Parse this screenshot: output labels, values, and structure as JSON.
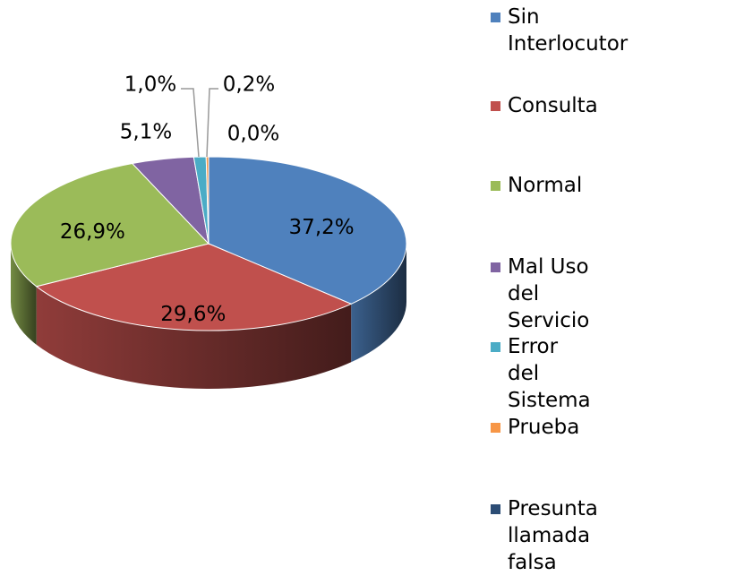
{
  "chart_data": {
    "type": "pie",
    "categories": [
      "Sin Interlocutor",
      "Consulta",
      "Normal",
      "Mal Uso del Servicio",
      "Error del Sistema",
      "Prueba",
      "Presunta llamada falsa"
    ],
    "values": [
      37.2,
      29.6,
      26.9,
      5.1,
      1.0,
      0.2,
      0.0
    ],
    "value_labels": [
      "37,2%",
      "29,6%",
      "26,9%",
      "5,1%",
      "1,0%",
      "0,2%",
      "0,0%"
    ],
    "colors": [
      "#4f81bd",
      "#c0504d",
      "#9bbb59",
      "#8064a2",
      "#4bacc6",
      "#f79646",
      "#2c4d75"
    ],
    "legend": "right"
  }
}
